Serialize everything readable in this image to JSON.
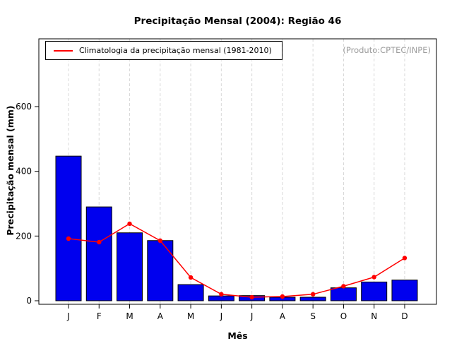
{
  "chart": {
    "title": "Precipitação Mensal (2004): Região 46",
    "legend_label": "Climatologia da precipitação mensal (1981-2010)",
    "product_note": "(Produto:CPTEC/INPE)",
    "xlabel": "Mês",
    "ylabel": "Precipitação mensal (mm)"
  },
  "chart_data": {
    "type": "bar",
    "title": "Precipitação Mensal (2004): Região 46",
    "xlabel": "Mês",
    "ylabel": "Precipitação mensal (mm)",
    "categories": [
      "J",
      "F",
      "M",
      "A",
      "M",
      "J",
      "J",
      "A",
      "S",
      "O",
      "N",
      "D"
    ],
    "series": [
      {
        "name": "Precipitação mensal 2004",
        "type": "bar",
        "color": "#0000ee",
        "values": [
          447,
          290,
          210,
          186,
          50,
          15,
          16,
          11,
          11,
          40,
          58,
          64
        ]
      },
      {
        "name": "Climatologia da precipitação mensal (1981-2010)",
        "type": "line",
        "color": "#ff0000",
        "values": [
          192,
          181,
          238,
          186,
          72,
          20,
          11,
          13,
          20,
          45,
          73,
          132
        ]
      }
    ],
    "ylim": [
      0,
      800
    ],
    "yticks": [
      0,
      200,
      400,
      600
    ],
    "grid": "vertical-dashed",
    "grid_color": "#d8d8d8",
    "legend_position": "top-left"
  }
}
